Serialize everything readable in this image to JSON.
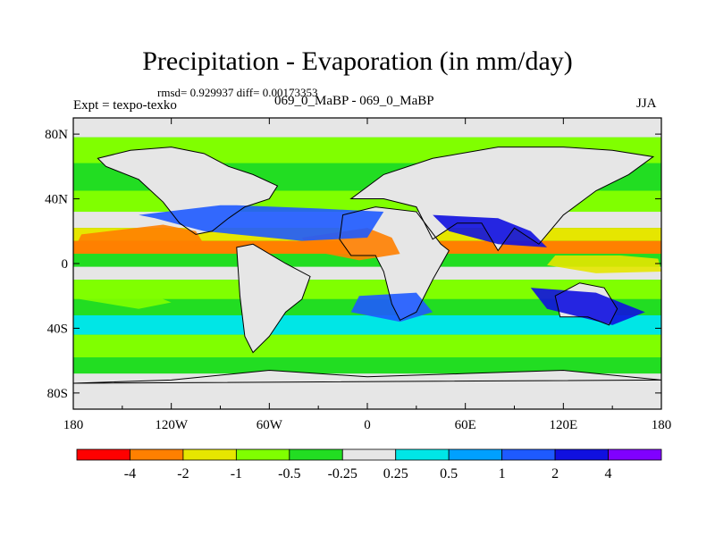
{
  "title": "Precipitation - Evaporation (in mm/day)",
  "stats": "rmsd= 0.929937 diff= 0.00173353",
  "expt_label": "Expt = texpo-texko",
  "case_label": "069_0_MaBP - 069_0_MaBP",
  "season": "JJA",
  "colors": {
    "frame": "#000000",
    "background": "#ffffff"
  },
  "chart_data": {
    "type": "heatmap",
    "title": "Precipitation - Evaporation (in mm/day)",
    "xlabel": "",
    "ylabel": "",
    "xlim": [
      -180,
      180
    ],
    "ylim": [
      -90,
      90
    ],
    "x_ticks": [
      {
        "value": -180,
        "label": "180"
      },
      {
        "value": -120,
        "label": "120W"
      },
      {
        "value": -60,
        "label": "60W"
      },
      {
        "value": 0,
        "label": "0"
      },
      {
        "value": 60,
        "label": "60E"
      },
      {
        "value": 120,
        "label": "120E"
      },
      {
        "value": 180,
        "label": "180"
      }
    ],
    "y_ticks": [
      {
        "value": 80,
        "label": "80N"
      },
      {
        "value": 40,
        "label": "40N"
      },
      {
        "value": 0,
        "label": "0"
      },
      {
        "value": -40,
        "label": "40S"
      },
      {
        "value": -80,
        "label": "80S"
      }
    ],
    "colorbar": {
      "bounds": [
        -4,
        -2,
        -1,
        -0.5,
        -0.25,
        0.25,
        0.5,
        1,
        2,
        4
      ],
      "labels": [
        "-4",
        "-2",
        "-1",
        "-0.5",
        "-0.25",
        "0.25",
        "0.5",
        "1",
        "2",
        "4"
      ],
      "colors": [
        "#ff0000",
        "#ff8000",
        "#e6e600",
        "#80ff00",
        "#22dd22",
        "#e6e6e6",
        "#00e6e6",
        "#00a0ff",
        "#1e5aff",
        "#1010e0",
        "#8000ff"
      ]
    },
    "regions": [
      {
        "name": "tropical-north-pacific-negative",
        "cat": 1,
        "lon": [
          -175,
          -125,
          -105,
          -100,
          -130,
          -165,
          -178
        ],
        "lat": [
          18,
          24,
          20,
          12,
          8,
          10,
          12
        ]
      },
      {
        "name": "atlantic-sahara-negative",
        "cat": 1,
        "lon": [
          -40,
          0,
          15,
          20,
          -5,
          -35
        ],
        "lat": [
          16,
          22,
          16,
          6,
          2,
          8
        ]
      },
      {
        "name": "indian-ocean-negative",
        "cat": 2,
        "lon": [
          115,
          155,
          178,
          180,
          140,
          110
        ],
        "lat": [
          5,
          5,
          3,
          -5,
          -6,
          -1
        ]
      },
      {
        "name": "south-pacific-negative",
        "cat": 3,
        "lon": [
          -178,
          -140,
          -120,
          -140,
          -176
        ],
        "lat": [
          -14,
          -16,
          -24,
          -28,
          -22
        ]
      },
      {
        "name": "west-pacific-positive",
        "cat": 8,
        "lon": [
          -140,
          -90,
          -80,
          -30,
          10,
          0,
          -40,
          -100,
          -130
        ],
        "lat": [
          30,
          36,
          36,
          34,
          32,
          16,
          14,
          20,
          28
        ]
      },
      {
        "name": "monsoon-positive",
        "cat": 9,
        "lon": [
          40,
          80,
          100,
          110,
          80,
          50
        ],
        "lat": [
          30,
          28,
          20,
          10,
          12,
          20
        ]
      },
      {
        "name": "south-atlantic-positive",
        "cat": 8,
        "lon": [
          -5,
          30,
          40,
          20,
          -10
        ],
        "lat": [
          -20,
          -18,
          -30,
          -36,
          -30
        ]
      },
      {
        "name": "indo-pacific-positive",
        "cat": 9,
        "lon": [
          100,
          140,
          170,
          150,
          110
        ],
        "lat": [
          -15,
          -18,
          -30,
          -38,
          -28
        ]
      }
    ],
    "coastlines": [
      {
        "name": "north-america",
        "lon": [
          -165,
          -145,
          -120,
          -100,
          -85,
          -70,
          -55,
          -60,
          -75,
          -85,
          -95,
          -105,
          -115,
          -125,
          -140,
          -160
        ],
        "lat": [
          65,
          70,
          72,
          68,
          60,
          55,
          48,
          40,
          35,
          28,
          20,
          18,
          25,
          38,
          52,
          60
        ]
      },
      {
        "name": "south-america",
        "lon": [
          -80,
          -70,
          -50,
          -35,
          -40,
          -50,
          -60,
          -70,
          -75,
          -78
        ],
        "lat": [
          10,
          12,
          0,
          -8,
          -22,
          -30,
          -45,
          -55,
          -45,
          -20
        ]
      },
      {
        "name": "africa",
        "lon": [
          -15,
          5,
          30,
          45,
          50,
          40,
          30,
          20,
          15,
          10,
          5,
          -10,
          -17
        ],
        "lat": [
          30,
          35,
          32,
          12,
          8,
          -10,
          -30,
          -35,
          -25,
          -5,
          5,
          5,
          15
        ]
      },
      {
        "name": "eurasia",
        "lon": [
          -10,
          10,
          40,
          80,
          120,
          150,
          175,
          160,
          140,
          120,
          105,
          90,
          80,
          70,
          55,
          40,
          30,
          10
        ],
        "lat": [
          40,
          55,
          65,
          72,
          72,
          70,
          66,
          55,
          45,
          30,
          12,
          22,
          8,
          25,
          25,
          15,
          35,
          40
        ]
      },
      {
        "name": "australia",
        "lon": [
          115,
          130,
          145,
          153,
          148,
          135,
          118
        ],
        "lat": [
          -20,
          -12,
          -15,
          -28,
          -38,
          -33,
          -33
        ]
      },
      {
        "name": "antarctica",
        "lon": [
          -180,
          -120,
          -60,
          0,
          60,
          120,
          180
        ],
        "lat": [
          -74,
          -72,
          -66,
          -70,
          -68,
          -66,
          -72
        ]
      }
    ]
  }
}
